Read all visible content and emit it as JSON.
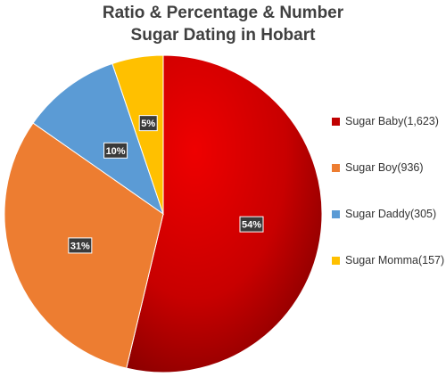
{
  "chart_data": {
    "type": "pie",
    "title_lines": [
      "Ratio & Percentage & Number",
      "Sugar Dating in Hobart"
    ],
    "slices": [
      {
        "name": "Sugar Baby(1,623)",
        "value": 1623,
        "label": "54%",
        "color": "#c00000"
      },
      {
        "name": "Sugar Boy(936)",
        "value": 936,
        "label": "31%",
        "color": "#ed7d31"
      },
      {
        "name": "Sugar Daddy(305)",
        "value": 305,
        "label": "10%",
        "color": "#5b9bd5"
      },
      {
        "name": "Sugar Momma(157)",
        "value": 157,
        "label": "5%",
        "color": "#ffc000"
      }
    ],
    "legend_position": "right"
  }
}
